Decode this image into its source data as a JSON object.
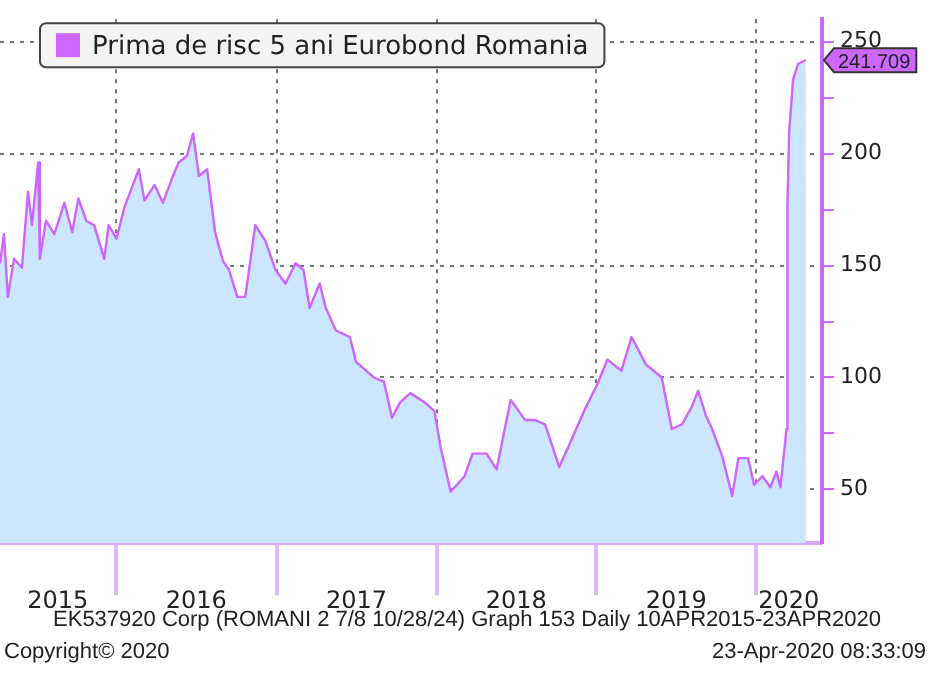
{
  "chart_data": {
    "type": "area",
    "legend": "top left",
    "grid": true,
    "xlim": [
      "2015-04-10",
      "2020-05-30"
    ],
    "xticks": [
      {
        "value": "2015-08-20",
        "label": "2015"
      },
      {
        "value": "2016-01-01",
        "label": null
      },
      {
        "value": "2016-07-01",
        "label": "2016"
      },
      {
        "value": "2017-01-01",
        "label": null
      },
      {
        "value": "2017-07-02",
        "label": "2017"
      },
      {
        "value": "2018-01-01",
        "label": null
      },
      {
        "value": "2018-07-02",
        "label": "2018"
      },
      {
        "value": "2019-01-01",
        "label": null
      },
      {
        "value": "2019-07-02",
        "label": "2019"
      },
      {
        "value": "2020-01-01",
        "label": null
      },
      {
        "value": "2020-03-15",
        "label": "2020"
      }
    ],
    "ylim": [
      26,
      260
    ],
    "yticks": [
      50,
      {
        "value": 75,
        "label": null
      },
      100,
      {
        "value": 125,
        "label": null
      },
      150,
      {
        "value": 175,
        "label": null
      },
      200,
      {
        "value": 225,
        "label": null
      },
      250
    ],
    "series": [
      {
        "name": "Prima de risc 5 ani Eurobond Romania",
        "color": "#cc66ff",
        "x": [
          "2015-04-10",
          "2015-04-19",
          "2015-04-28",
          "2015-05-12",
          "2015-05-30",
          "2015-06-13",
          "2015-06-22",
          "2015-07-06",
          "2015-07-10",
          "2015-07-24",
          "2015-08-12",
          "2015-09-04",
          "2015-09-22",
          "2015-10-06",
          "2015-10-24",
          "2015-11-11",
          "2015-12-04",
          "2015-12-14",
          "2016-01-01",
          "2016-01-19",
          "2016-02-21",
          "2016-03-05",
          "2016-03-28",
          "2016-04-16",
          "2016-05-09",
          "2016-05-22",
          "2016-06-10",
          "2016-06-24",
          "2016-07-07",
          "2016-07-26",
          "2016-08-13",
          "2016-08-31",
          "2016-09-14",
          "2016-10-03",
          "2016-10-21",
          "2016-11-13",
          "2016-12-06",
          "2016-12-29",
          "2017-01-21",
          "2017-02-13",
          "2017-03-03",
          "2017-03-17",
          "2017-04-09",
          "2017-04-23",
          "2017-05-16",
          "2017-06-17",
          "2017-07-01",
          "2017-08-11",
          "2017-09-03",
          "2017-09-21",
          "2017-10-10",
          "2017-11-02",
          "2017-12-04",
          "2017-12-27",
          "2018-01-10",
          "2018-02-02",
          "2018-03-06",
          "2018-03-24",
          "2018-04-25",
          "2018-05-18",
          "2018-06-19",
          "2018-07-22",
          "2018-08-14",
          "2018-09-06",
          "2018-10-08",
          "2018-10-31",
          "2018-12-06",
          "2019-01-03",
          "2019-01-26",
          "2019-02-27",
          "2019-03-22",
          "2019-04-05",
          "2019-04-23",
          "2019-05-30",
          "2019-06-22",
          "2019-07-15",
          "2019-08-07",
          "2019-08-21",
          "2019-09-08",
          "2019-09-22",
          "2019-10-15",
          "2019-11-07",
          "2019-11-21",
          "2019-12-13",
          "2019-12-27",
          "2020-01-15",
          "2020-02-02",
          "2020-02-16",
          "2020-02-25",
          "2020-03-10",
          "2020-03-12",
          "2020-03-16",
          "2020-03-25",
          "2020-04-05",
          "2020-04-23"
        ],
        "values": [
          151,
          164,
          136,
          153,
          149,
          183,
          168,
          196,
          153,
          170,
          164,
          178,
          165,
          180,
          170,
          168,
          153,
          168,
          162,
          176,
          193,
          179,
          186,
          178,
          190,
          196,
          199,
          209,
          190,
          193,
          165,
          152,
          148,
          136,
          136,
          168,
          161,
          148,
          142,
          151,
          148,
          131,
          142,
          131,
          121,
          118,
          107,
          100,
          98,
          82,
          89,
          93,
          89,
          85,
          69,
          49,
          56,
          66,
          66,
          59,
          90,
          81,
          81,
          79,
          60,
          70,
          86,
          97,
          108,
          103,
          118,
          113,
          106,
          100,
          77,
          79,
          87,
          94,
          83,
          77,
          65,
          47,
          64,
          64,
          52,
          56,
          51,
          58,
          51,
          77,
          176,
          210,
          233,
          240,
          241.709
        ]
      }
    ],
    "annotations": [
      {
        "text": "241.709",
        "x": "2020-04-23",
        "y": 241.709
      },
      "EK537920 Corp (ROMANI 2 7/8 10/28/24) Graph 153  Daily 10APR2015-23APR2020",
      "Copyright© 2020",
      "23-Apr-2020 08:33:09"
    ]
  }
}
